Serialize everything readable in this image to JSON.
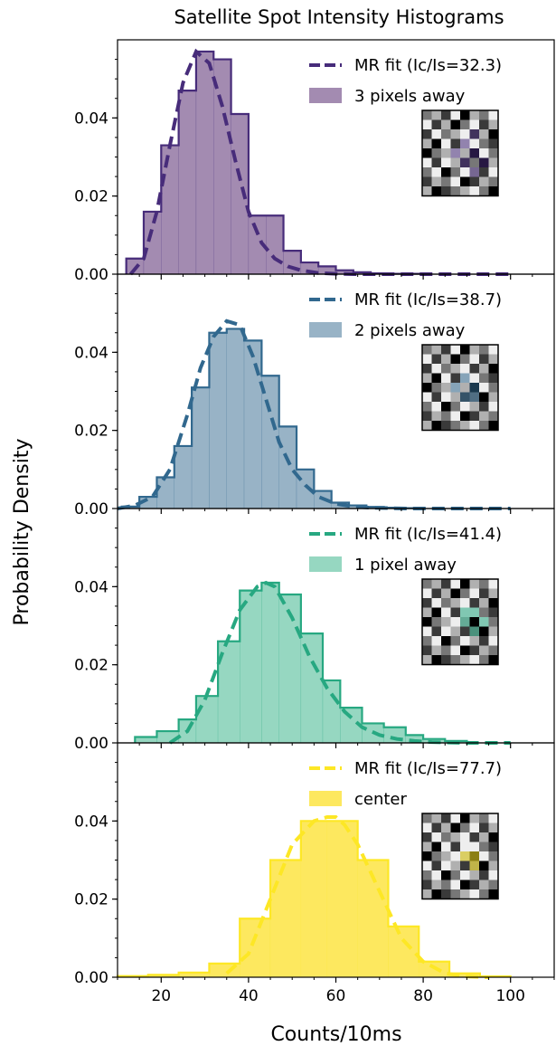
{
  "chart_data": {
    "type": "bar",
    "title": "Satellite Spot Intensity Histograms",
    "xlabel": "Counts/10ms",
    "ylabel": "Probability Density",
    "xlim": [
      10,
      110
    ],
    "ylim": [
      0,
      0.06
    ],
    "x_ticks": [
      20,
      40,
      60,
      80,
      100
    ],
    "y_ticks": [
      0.0,
      0.02,
      0.04
    ],
    "legend_position": "top-right",
    "panels": [
      {
        "fit_label": "MR fit (Ic/Is=32.3)",
        "hist_label": "3 pixels away",
        "color": "#472c7a",
        "fill": "#a38bb1",
        "bin_edges": [
          12,
          16,
          20,
          24,
          28,
          32,
          36,
          40,
          44,
          48,
          52,
          56,
          60,
          64,
          68,
          72,
          76,
          80
        ],
        "counts": [
          0.004,
          0.016,
          0.033,
          0.047,
          0.057,
          0.055,
          0.041,
          0.015,
          0.015,
          0.006,
          0.003,
          0.002,
          0.001,
          0.0005,
          0.0002,
          0.0001,
          0.0001
        ],
        "fit_x": [
          13,
          16,
          19,
          22,
          25,
          28,
          31,
          34,
          37,
          40,
          43,
          46,
          49,
          52,
          56,
          60,
          64,
          68,
          72,
          76,
          80,
          84,
          88,
          92,
          96,
          100
        ],
        "fit_y": [
          0.0,
          0.004,
          0.016,
          0.033,
          0.049,
          0.057,
          0.054,
          0.043,
          0.029,
          0.016,
          0.008,
          0.004,
          0.002,
          0.001,
          0.0003,
          0.0001,
          0.0,
          0.0,
          0.0,
          0.0,
          0.0,
          0.0,
          0.0,
          0.0,
          0.0,
          0.0
        ]
      },
      {
        "fit_label": "MR fit (Ic/Is=38.7)",
        "hist_label": "2 pixels away",
        "color": "#31688e",
        "fill": "#98b3c6",
        "bin_edges": [
          11,
          15,
          19,
          23,
          27,
          31,
          35,
          39,
          43,
          47,
          51,
          55,
          59,
          63,
          67,
          71,
          75,
          79
        ],
        "counts": [
          0.0005,
          0.003,
          0.008,
          0.016,
          0.031,
          0.045,
          0.046,
          0.043,
          0.034,
          0.021,
          0.01,
          0.0045,
          0.0015,
          0.0008,
          0.0004,
          0.0002,
          0.0001
        ],
        "fit_x": [
          10,
          14,
          18,
          22,
          26,
          29,
          32,
          35,
          38,
          41,
          44,
          47,
          50,
          53,
          56,
          60,
          64,
          68,
          72,
          76,
          80,
          85,
          90,
          95,
          100
        ],
        "fit_y": [
          0.0,
          0.0008,
          0.003,
          0.01,
          0.024,
          0.036,
          0.044,
          0.048,
          0.047,
          0.039,
          0.028,
          0.017,
          0.01,
          0.006,
          0.003,
          0.0012,
          0.0005,
          0.0002,
          0.0001,
          0.0,
          0.0,
          0.0,
          0.0,
          0.0,
          0.0
        ]
      },
      {
        "fit_label": "MR fit (Ic/Is=41.4)",
        "hist_label": "1 pixel away",
        "color": "#27a881",
        "fill": "#96d7c1",
        "bin_edges": [
          14,
          19,
          24,
          28,
          33,
          38,
          43,
          47,
          52,
          57,
          61,
          66,
          71,
          76,
          80,
          85,
          90
        ],
        "counts": [
          0.0015,
          0.003,
          0.006,
          0.012,
          0.026,
          0.039,
          0.041,
          0.038,
          0.028,
          0.016,
          0.009,
          0.005,
          0.004,
          0.002,
          0.001,
          0.0005
        ],
        "fit_x": [
          22,
          26,
          30,
          34,
          38,
          42,
          44,
          46,
          50,
          54,
          58,
          62,
          66,
          70,
          74,
          78,
          82,
          86,
          90,
          95,
          100
        ],
        "fit_y": [
          0.0,
          0.003,
          0.011,
          0.023,
          0.034,
          0.04,
          0.041,
          0.04,
          0.032,
          0.022,
          0.014,
          0.008,
          0.004,
          0.002,
          0.001,
          0.0005,
          0.0002,
          0.0001,
          0.0,
          0.0,
          0.0
        ]
      },
      {
        "fit_label": "MR fit (Ic/Is=77.7)",
        "hist_label": "center",
        "color": "#fde725",
        "fill": "#fde85f",
        "bin_edges": [
          10,
          17,
          24,
          31,
          38,
          45,
          52,
          58,
          65,
          72,
          79,
          86,
          93,
          100
        ],
        "counts": [
          0.0003,
          0.0006,
          0.0012,
          0.0035,
          0.015,
          0.03,
          0.04,
          0.04,
          0.03,
          0.013,
          0.004,
          0.001,
          0.0002
        ],
        "fit_x": [
          35,
          40,
          45,
          50,
          55,
          58,
          60,
          62,
          65,
          70,
          75,
          80,
          85,
          90,
          95
        ],
        "fit_y": [
          0.001,
          0.006,
          0.02,
          0.034,
          0.04,
          0.041,
          0.041,
          0.039,
          0.034,
          0.022,
          0.01,
          0.004,
          0.001,
          0.0002,
          0.0
        ]
      }
    ]
  }
}
